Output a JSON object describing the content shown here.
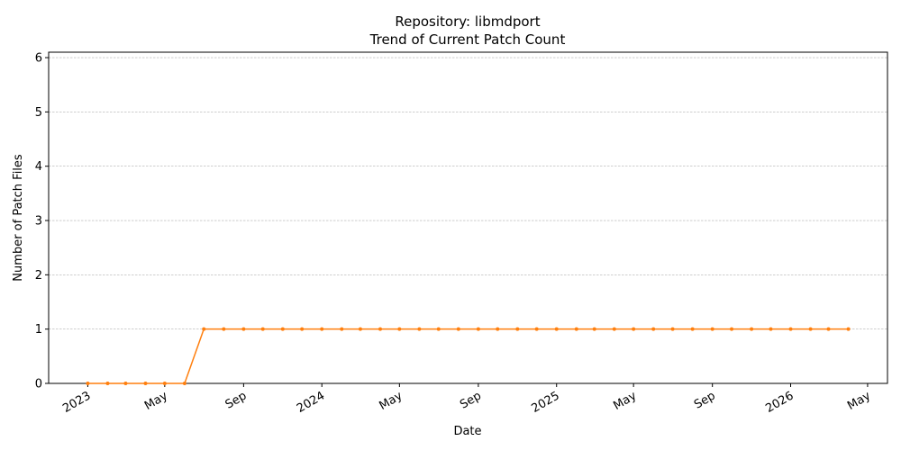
{
  "chart_data": {
    "type": "line",
    "title": "Repository: libmdport",
    "subtitle": "Trend of Current Patch Count",
    "x_label": "Date",
    "y_label": "Number of Patch Files",
    "x": [
      "2023-01",
      "2023-02",
      "2023-03",
      "2023-04",
      "2023-05",
      "2023-06",
      "2023-07",
      "2023-08",
      "2023-09",
      "2023-10",
      "2023-11",
      "2023-12",
      "2024-01",
      "2024-02",
      "2024-03",
      "2024-04",
      "2024-05",
      "2024-06",
      "2024-07",
      "2024-08",
      "2024-09",
      "2024-10",
      "2024-11",
      "2024-12",
      "2025-01",
      "2025-02",
      "2025-03",
      "2025-04",
      "2025-05",
      "2025-06",
      "2025-07",
      "2025-08",
      "2025-09",
      "2025-10",
      "2025-11",
      "2025-12",
      "2026-01",
      "2026-02",
      "2026-03",
      "2026-04"
    ],
    "values": [
      0,
      0,
      0,
      0,
      0,
      0,
      1,
      1,
      1,
      1,
      1,
      1,
      1,
      1,
      1,
      1,
      1,
      1,
      1,
      1,
      1,
      1,
      1,
      1,
      1,
      1,
      1,
      1,
      1,
      1,
      1,
      1,
      1,
      1,
      1,
      1,
      1,
      1,
      1,
      1
    ],
    "color": "#ff7f0e",
    "xlim": [
      "2022-11",
      "2026-06"
    ],
    "xticks": [
      {
        "value": "2023-01",
        "label": "2023"
      },
      {
        "value": "2023-05",
        "label": "May"
      },
      {
        "value": "2023-09",
        "label": "Sep"
      },
      {
        "value": "2024-01",
        "label": "2024"
      },
      {
        "value": "2024-05",
        "label": "May"
      },
      {
        "value": "2024-09",
        "label": "Sep"
      },
      {
        "value": "2025-01",
        "label": "2025"
      },
      {
        "value": "2025-05",
        "label": "May"
      },
      {
        "value": "2025-09",
        "label": "Sep"
      },
      {
        "value": "2026-01",
        "label": "2026"
      },
      {
        "value": "2026-05",
        "label": "May"
      }
    ],
    "ylim": [
      0,
      6.1
    ],
    "yticks": [
      0,
      1,
      2,
      3,
      4,
      5,
      6
    ],
    "grid": "y"
  }
}
